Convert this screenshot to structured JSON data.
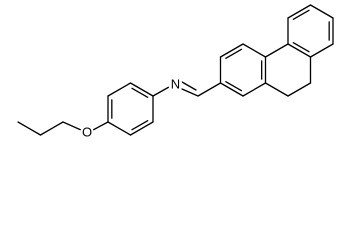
{
  "atoms": [
    {
      "label": "O"
    },
    {
      "label": "N"
    }
  ]
}
